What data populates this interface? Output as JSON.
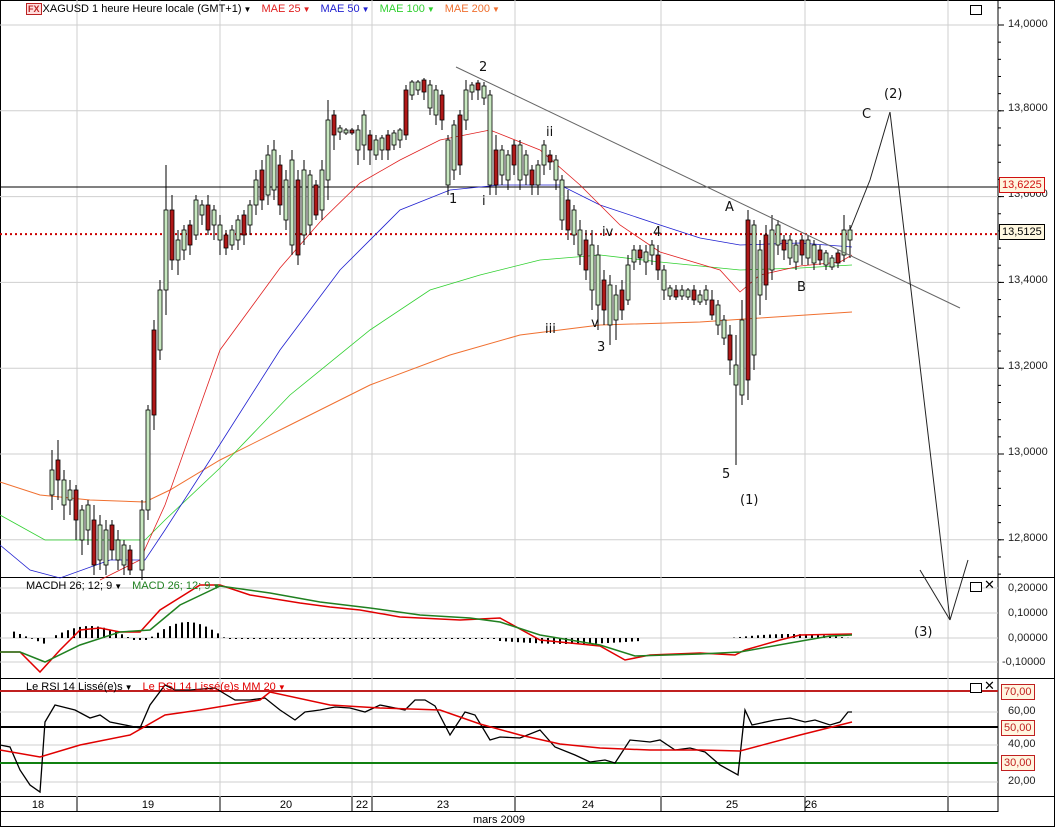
{
  "header": {
    "instrument": "XAGUSD 1 heure Heure locale (GMT+1)",
    "fx_badge": "FX",
    "indicators": [
      {
        "label": "MAE 25",
        "color": "#e02020"
      },
      {
        "label": "MAE 50",
        "color": "#2020d0"
      },
      {
        "label": "MAE 100",
        "color": "#30d030"
      },
      {
        "label": "MAE 200",
        "color": "#f07030"
      }
    ]
  },
  "macd_panel": {
    "legend_hist": "MACDH 26; 12; 9",
    "legend_macd": "MACD  26; 12; 9",
    "hist_color": "#000000",
    "macd_color": "#e00000",
    "signal_color": "#208020"
  },
  "rsi_panel": {
    "legend_rsi": "Le RSI 14 Lissé(e)s",
    "legend_ma": "Le RSI 14 Lissé(e)s MM 20",
    "rsi_color": "#000000",
    "ma_color": "#e00000",
    "levels": [
      {
        "value": "70,00",
        "color": "#c02020"
      },
      {
        "value": "50,00",
        "color": "#000000"
      },
      {
        "value": "30,00",
        "color": "#108010"
      }
    ]
  },
  "price_axis": {
    "ticks": [
      "14,0000",
      "13,8000",
      "13,6000",
      "13,4000",
      "13,2000",
      "13,0000",
      "12,8000"
    ],
    "hline_tag": "13,6225",
    "current_tag": "13,5125"
  },
  "macd_axis": {
    "ticks": [
      "0,20000",
      "0,10000",
      "0,00000",
      "-0,10000"
    ]
  },
  "rsi_axis": {
    "ticks": [
      "70,00",
      "60,00",
      "50,00",
      "40,00",
      "30,00",
      "20,00"
    ]
  },
  "x_axis": {
    "dates": [
      "18",
      "19",
      "20",
      "22",
      "23",
      "24",
      "25",
      "26"
    ],
    "month": "mars 2009"
  },
  "wave_labels": {
    "w1": "1",
    "w2": "2",
    "wi": "i",
    "wii": "ii",
    "wiii": "iii",
    "wiv": "iv",
    "wv": "v",
    "w3": "3",
    "w4": "4",
    "w5": "5",
    "wA": "A",
    "wB": "B",
    "wC": "C",
    "w_1": "(1)",
    "w_2": "(2)",
    "w_3": "(3)"
  },
  "chart_data": [
    {
      "type": "candlestick",
      "title": "XAGUSD 1 heure Heure locale (GMT+1)",
      "xlabel": "mars 2009",
      "x_ticks": [
        "18",
        "19",
        "20",
        "22",
        "23",
        "24",
        "25",
        "26"
      ],
      "ylim": [
        12.7,
        14.05
      ],
      "y_ticks": [
        12.8,
        13.0,
        13.2,
        13.4,
        13.6,
        13.8,
        14.0
      ],
      "grid": true,
      "horizontal_lines": [
        {
          "value": 13.6225,
          "style": "solid",
          "color": "#000000"
        },
        {
          "value": 13.5125,
          "style": "dotted",
          "color": "#cc0000",
          "label": "current price"
        }
      ],
      "series": [
        {
          "name": "MAE 25",
          "color": "#e02020"
        },
        {
          "name": "MAE 50",
          "color": "#2020d0"
        },
        {
          "name": "MAE 100",
          "color": "#30d030"
        },
        {
          "name": "MAE 200",
          "color": "#f07030"
        }
      ],
      "key_points": [
        {
          "label": "1",
          "price": 13.62
        },
        {
          "label": "2",
          "price": 13.87
        },
        {
          "label": "3",
          "price": 13.28
        },
        {
          "label": "4",
          "price": 13.47
        },
        {
          "label": "5",
          "price": 12.96
        },
        {
          "label": "A",
          "price": 13.56
        },
        {
          "label": "B",
          "price": 13.42
        },
        {
          "label": "C",
          "price": 13.79
        },
        {
          "label": "(1)",
          "price": 12.96
        },
        {
          "label": "(2)",
          "price": 13.79
        },
        {
          "label": "(3)",
          "price": 12.75
        }
      ],
      "annotations": [
        "Elliott wave count 1-2-3-4-5, i-ii-iii-iv-v, A-B-C, (1)-(2)-(3) projection",
        "descending trendline from wave 2 high"
      ]
    },
    {
      "type": "line",
      "title": "MACDH 26; 12; 9 / MACD 26; 12; 9",
      "ylim": [
        -0.15,
        0.24
      ],
      "y_ticks": [
        -0.1,
        0.0,
        0.1,
        0.2
      ],
      "series": [
        {
          "name": "MACD",
          "color": "#e00000"
        },
        {
          "name": "Signal",
          "color": "#208020"
        },
        {
          "name": "MACDH",
          "type": "bar",
          "color": "#000000"
        }
      ]
    },
    {
      "type": "line",
      "title": "Le RSI 14 Lissé(e)s",
      "ylim": [
        10,
        75
      ],
      "y_ticks": [
        20,
        30,
        40,
        50,
        60,
        70
      ],
      "levels": [
        70,
        50,
        30
      ],
      "series": [
        {
          "name": "Le RSI 14 Lissé(e)s",
          "color": "#000000"
        },
        {
          "name": "Le RSI 14 Lissé(e)s MM 20",
          "color": "#e00000"
        }
      ]
    }
  ]
}
